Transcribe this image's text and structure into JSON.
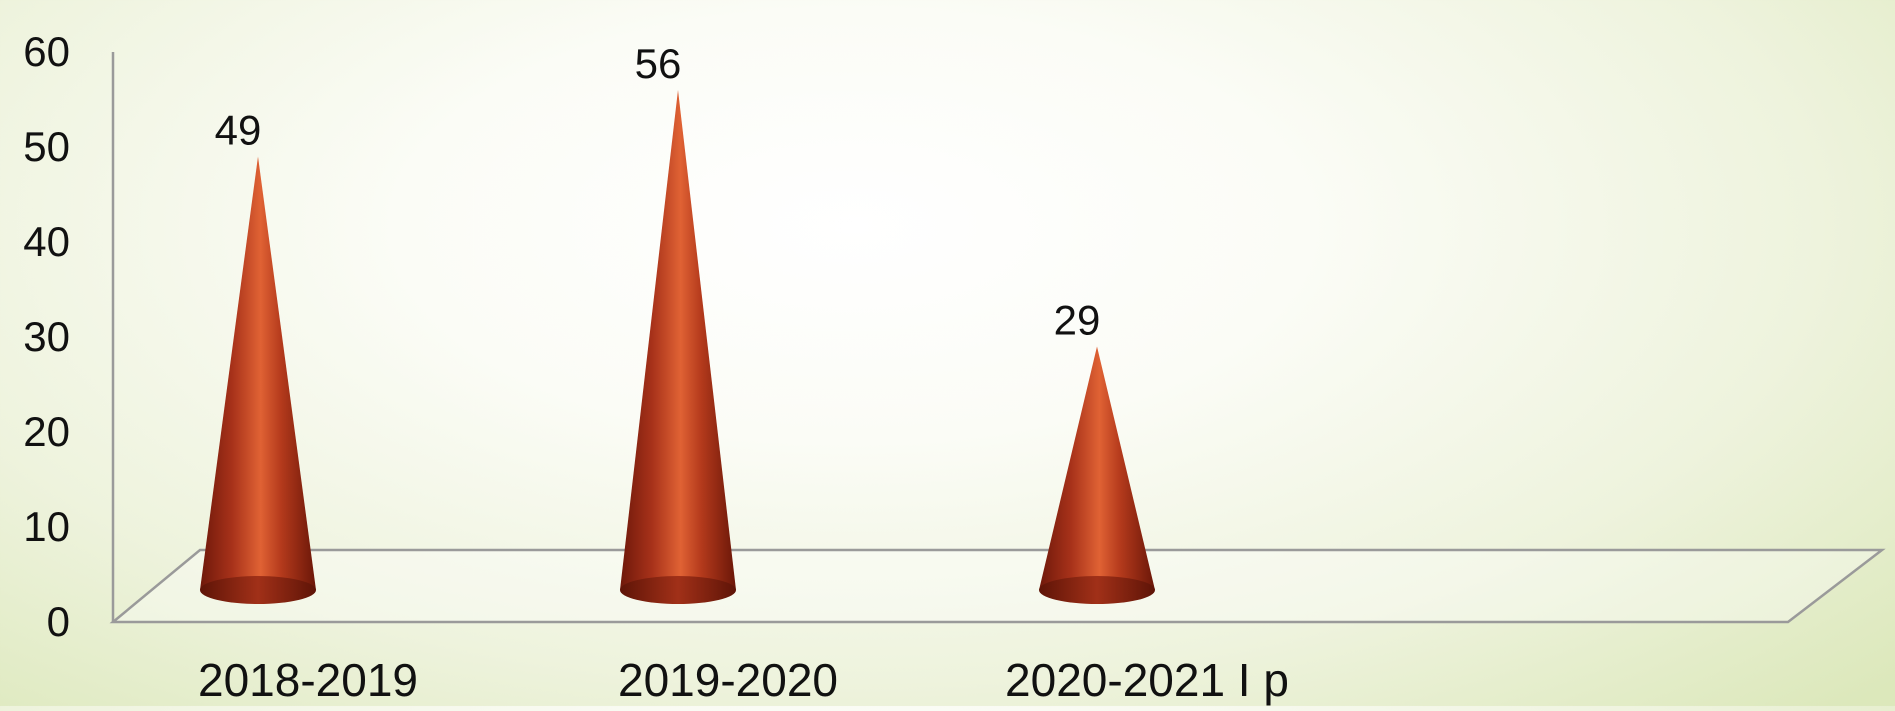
{
  "chart_data": {
    "type": "bar",
    "style": "3d-cone",
    "categories": [
      "2018-2019",
      "2019-2020",
      "2020-2021 I p"
    ],
    "values": [
      49,
      56,
      29
    ],
    "data_labels": [
      "49",
      "56",
      "29"
    ],
    "ylim": [
      0,
      60
    ],
    "yticks": [
      0,
      10,
      20,
      30,
      40,
      50,
      60
    ],
    "ytick_labels": [
      "0",
      "10",
      "20",
      "30",
      "40",
      "50",
      "60"
    ],
    "grid": false,
    "legend": "none",
    "title": "",
    "xlabel": "",
    "ylabel": "",
    "colors": {
      "cone_dark": "#7a1c0a",
      "cone_mid": "#b83a1a",
      "cone_light": "#dd5a30",
      "axis": "#9a9a9a"
    }
  }
}
